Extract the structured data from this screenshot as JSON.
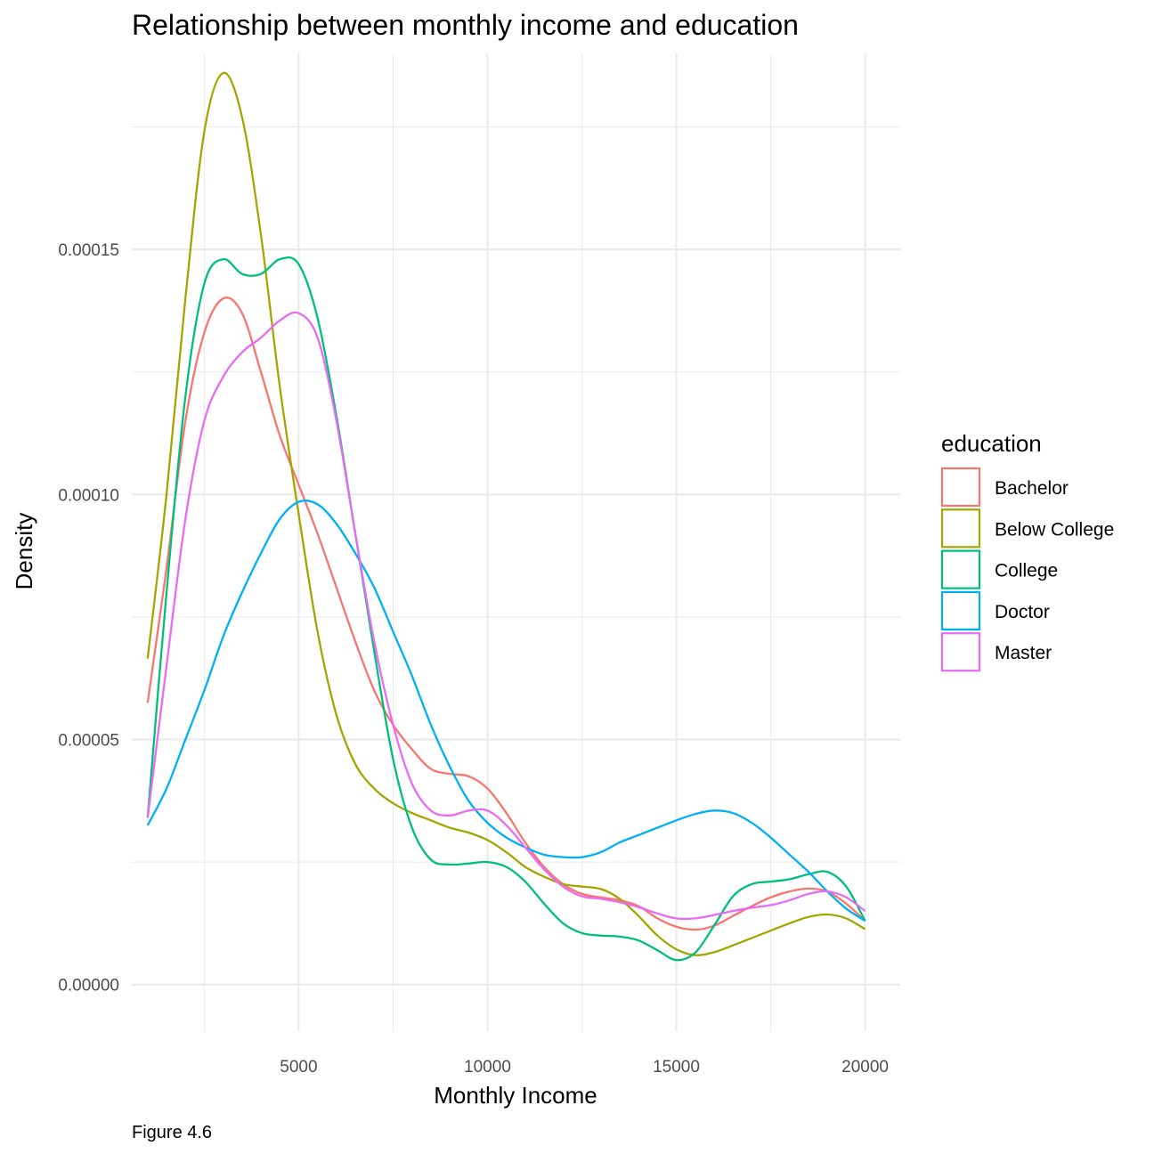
{
  "chart_data": {
    "type": "line",
    "title": "Relationship between monthly income and education",
    "xlabel": "Monthly Income",
    "ylabel": "Density",
    "caption": "Figure 4.6",
    "xlim": [
      580,
      20930
    ],
    "ylim": [
      -9.5e-06,
      0.00019
    ],
    "x_ticks": [
      5000,
      10000,
      15000,
      20000
    ],
    "x_tick_labels": [
      "5000",
      "10000",
      "15000",
      "20000"
    ],
    "x_minor_ticks": [
      2500,
      7500,
      12500,
      17500
    ],
    "y_ticks": [
      0,
      5e-05,
      0.0001,
      0.00015
    ],
    "y_tick_labels": [
      "0.00000",
      "0.00005",
      "0.00010",
      "0.00015"
    ],
    "y_minor_ticks": [
      2.5e-05,
      7.5e-05,
      0.000125,
      0.000175
    ],
    "grid": true,
    "legend": {
      "title": "education",
      "placement": "right"
    },
    "series": [
      {
        "name": "Bachelor",
        "color": "#F8766D",
        "points": [
          [
            1000,
            5.75e-05
          ],
          [
            1500,
            8.5e-05
          ],
          [
            2000,
            0.000115
          ],
          [
            2500,
            0.000133
          ],
          [
            3000,
            0.00014
          ],
          [
            3500,
            0.000137
          ],
          [
            4000,
            0.000125
          ],
          [
            4500,
            0.000112
          ],
          [
            5000,
            0.000102
          ],
          [
            5500,
            9.2e-05
          ],
          [
            6000,
            8.1e-05
          ],
          [
            6500,
            7e-05
          ],
          [
            7000,
            6e-05
          ],
          [
            7500,
            5.3e-05
          ],
          [
            8000,
            4.8e-05
          ],
          [
            8500,
            4.4e-05
          ],
          [
            9000,
            4.3e-05
          ],
          [
            9500,
            4.25e-05
          ],
          [
            10000,
            4e-05
          ],
          [
            10500,
            3.5e-05
          ],
          [
            11000,
            2.9e-05
          ],
          [
            11500,
            2.4e-05
          ],
          [
            12000,
            2.05e-05
          ],
          [
            12500,
            1.85e-05
          ],
          [
            13000,
            1.78e-05
          ],
          [
            13500,
            1.72e-05
          ],
          [
            14000,
            1.6e-05
          ],
          [
            14500,
            1.35e-05
          ],
          [
            15000,
            1.18e-05
          ],
          [
            15500,
            1.12e-05
          ],
          [
            16000,
            1.2e-05
          ],
          [
            16500,
            1.4e-05
          ],
          [
            17000,
            1.6e-05
          ],
          [
            17500,
            1.78e-05
          ],
          [
            18000,
            1.9e-05
          ],
          [
            18500,
            1.96e-05
          ],
          [
            19000,
            1.9e-05
          ],
          [
            19500,
            1.65e-05
          ],
          [
            20000,
            1.3e-05
          ]
        ]
      },
      {
        "name": "Below College",
        "color": "#A3A500",
        "points": [
          [
            1000,
            6.65e-05
          ],
          [
            1500,
            0.0001
          ],
          [
            2000,
            0.00014
          ],
          [
            2500,
            0.000174
          ],
          [
            3000,
            0.000186
          ],
          [
            3500,
            0.000177
          ],
          [
            4000,
            0.000153
          ],
          [
            4500,
            0.000122
          ],
          [
            5000,
            9.6e-05
          ],
          [
            5500,
            7.2e-05
          ],
          [
            6000,
            5.5e-05
          ],
          [
            6500,
            4.5e-05
          ],
          [
            7000,
            4e-05
          ],
          [
            7500,
            3.7e-05
          ],
          [
            8000,
            3.5e-05
          ],
          [
            8500,
            3.35e-05
          ],
          [
            9000,
            3.2e-05
          ],
          [
            9500,
            3.1e-05
          ],
          [
            10000,
            2.95e-05
          ],
          [
            10500,
            2.7e-05
          ],
          [
            11000,
            2.4e-05
          ],
          [
            11500,
            2.2e-05
          ],
          [
            12000,
            2.05e-05
          ],
          [
            12500,
            2e-05
          ],
          [
            13000,
            1.95e-05
          ],
          [
            13500,
            1.75e-05
          ],
          [
            14000,
            1.4e-05
          ],
          [
            14500,
            1e-05
          ],
          [
            15000,
            7.2e-06
          ],
          [
            15500,
            6e-06
          ],
          [
            16000,
            6.6e-06
          ],
          [
            16500,
            8e-06
          ],
          [
            17000,
            9.5e-06
          ],
          [
            17500,
            1.1e-05
          ],
          [
            18000,
            1.25e-05
          ],
          [
            18500,
            1.38e-05
          ],
          [
            19000,
            1.43e-05
          ],
          [
            19500,
            1.35e-05
          ],
          [
            20000,
            1.13e-05
          ]
        ]
      },
      {
        "name": "College",
        "color": "#00BF7D",
        "points": [
          [
            1000,
            3.4e-05
          ],
          [
            1500,
            8e-05
          ],
          [
            2000,
            0.00012
          ],
          [
            2500,
            0.000143
          ],
          [
            3000,
            0.000148
          ],
          [
            3500,
            0.000145
          ],
          [
            4000,
            0.000145
          ],
          [
            4500,
            0.000148
          ],
          [
            5000,
            0.000147
          ],
          [
            5500,
            0.000136
          ],
          [
            6000,
            0.000116
          ],
          [
            6500,
            9.2e-05
          ],
          [
            7000,
            6.8e-05
          ],
          [
            7500,
            4.6e-05
          ],
          [
            8000,
            3.2e-05
          ],
          [
            8500,
            2.55e-05
          ],
          [
            9000,
            2.45e-05
          ],
          [
            9500,
            2.47e-05
          ],
          [
            10000,
            2.5e-05
          ],
          [
            10500,
            2.4e-05
          ],
          [
            11000,
            2.1e-05
          ],
          [
            11500,
            1.65e-05
          ],
          [
            12000,
            1.25e-05
          ],
          [
            12500,
            1.05e-05
          ],
          [
            13000,
            1e-05
          ],
          [
            13500,
            9.8e-06
          ],
          [
            14000,
            9e-06
          ],
          [
            14500,
            7e-06
          ],
          [
            15000,
            5e-06
          ],
          [
            15500,
            6.5e-06
          ],
          [
            16000,
            1.2e-05
          ],
          [
            16500,
            1.8e-05
          ],
          [
            17000,
            2.05e-05
          ],
          [
            17500,
            2.1e-05
          ],
          [
            18000,
            2.15e-05
          ],
          [
            18500,
            2.25e-05
          ],
          [
            19000,
            2.3e-05
          ],
          [
            19500,
            2e-05
          ],
          [
            20000,
            1.3e-05
          ]
        ]
      },
      {
        "name": "Doctor",
        "color": "#00B0F6",
        "points": [
          [
            1000,
            3.25e-05
          ],
          [
            1500,
            4e-05
          ],
          [
            2000,
            5e-05
          ],
          [
            2500,
            6e-05
          ],
          [
            3000,
            7.1e-05
          ],
          [
            3500,
            8e-05
          ],
          [
            4000,
            8.8e-05
          ],
          [
            4500,
            9.5e-05
          ],
          [
            5000,
            9.85e-05
          ],
          [
            5500,
            9.8e-05
          ],
          [
            6000,
            9.4e-05
          ],
          [
            6500,
            8.8e-05
          ],
          [
            7000,
            8.1e-05
          ],
          [
            7500,
            7.2e-05
          ],
          [
            8000,
            6.3e-05
          ],
          [
            8500,
            5.3e-05
          ],
          [
            9000,
            4.45e-05
          ],
          [
            9500,
            3.75e-05
          ],
          [
            10000,
            3.3e-05
          ],
          [
            10500,
            3e-05
          ],
          [
            11000,
            2.8e-05
          ],
          [
            11500,
            2.65e-05
          ],
          [
            12000,
            2.6e-05
          ],
          [
            12500,
            2.6e-05
          ],
          [
            13000,
            2.7e-05
          ],
          [
            13500,
            2.9e-05
          ],
          [
            14000,
            3.05e-05
          ],
          [
            14500,
            3.2e-05
          ],
          [
            15000,
            3.35e-05
          ],
          [
            15500,
            3.48e-05
          ],
          [
            16000,
            3.55e-05
          ],
          [
            16500,
            3.5e-05
          ],
          [
            17000,
            3.3e-05
          ],
          [
            17500,
            3e-05
          ],
          [
            18000,
            2.65e-05
          ],
          [
            18500,
            2.3e-05
          ],
          [
            19000,
            1.9e-05
          ],
          [
            19500,
            1.55e-05
          ],
          [
            20000,
            1.3e-05
          ]
        ]
      },
      {
        "name": "Master",
        "color": "#E76BF3",
        "points": [
          [
            1000,
            3.4e-05
          ],
          [
            1500,
            6.5e-05
          ],
          [
            2000,
            9.5e-05
          ],
          [
            2500,
            0.000115
          ],
          [
            3000,
            0.000124
          ],
          [
            3500,
            0.000129
          ],
          [
            4000,
            0.000132
          ],
          [
            4500,
            0.0001355
          ],
          [
            5000,
            0.000137
          ],
          [
            5500,
            0.000132
          ],
          [
            6000,
            0.000115
          ],
          [
            6500,
            9.2e-05
          ],
          [
            7000,
            7e-05
          ],
          [
            7500,
            5.3e-05
          ],
          [
            8000,
            4.1e-05
          ],
          [
            8500,
            3.55e-05
          ],
          [
            9000,
            3.45e-05
          ],
          [
            9500,
            3.55e-05
          ],
          [
            10000,
            3.55e-05
          ],
          [
            10500,
            3.25e-05
          ],
          [
            11000,
            2.8e-05
          ],
          [
            11500,
            2.35e-05
          ],
          [
            12000,
            2e-05
          ],
          [
            12500,
            1.8e-05
          ],
          [
            13000,
            1.75e-05
          ],
          [
            13500,
            1.68e-05
          ],
          [
            14000,
            1.58e-05
          ],
          [
            14500,
            1.45e-05
          ],
          [
            15000,
            1.35e-05
          ],
          [
            15500,
            1.35e-05
          ],
          [
            16000,
            1.42e-05
          ],
          [
            16500,
            1.5e-05
          ],
          [
            17000,
            1.57e-05
          ],
          [
            17500,
            1.62e-05
          ],
          [
            18000,
            1.72e-05
          ],
          [
            18500,
            1.85e-05
          ],
          [
            19000,
            1.9e-05
          ],
          [
            19500,
            1.78e-05
          ],
          [
            20000,
            1.5e-05
          ]
        ]
      }
    ]
  }
}
